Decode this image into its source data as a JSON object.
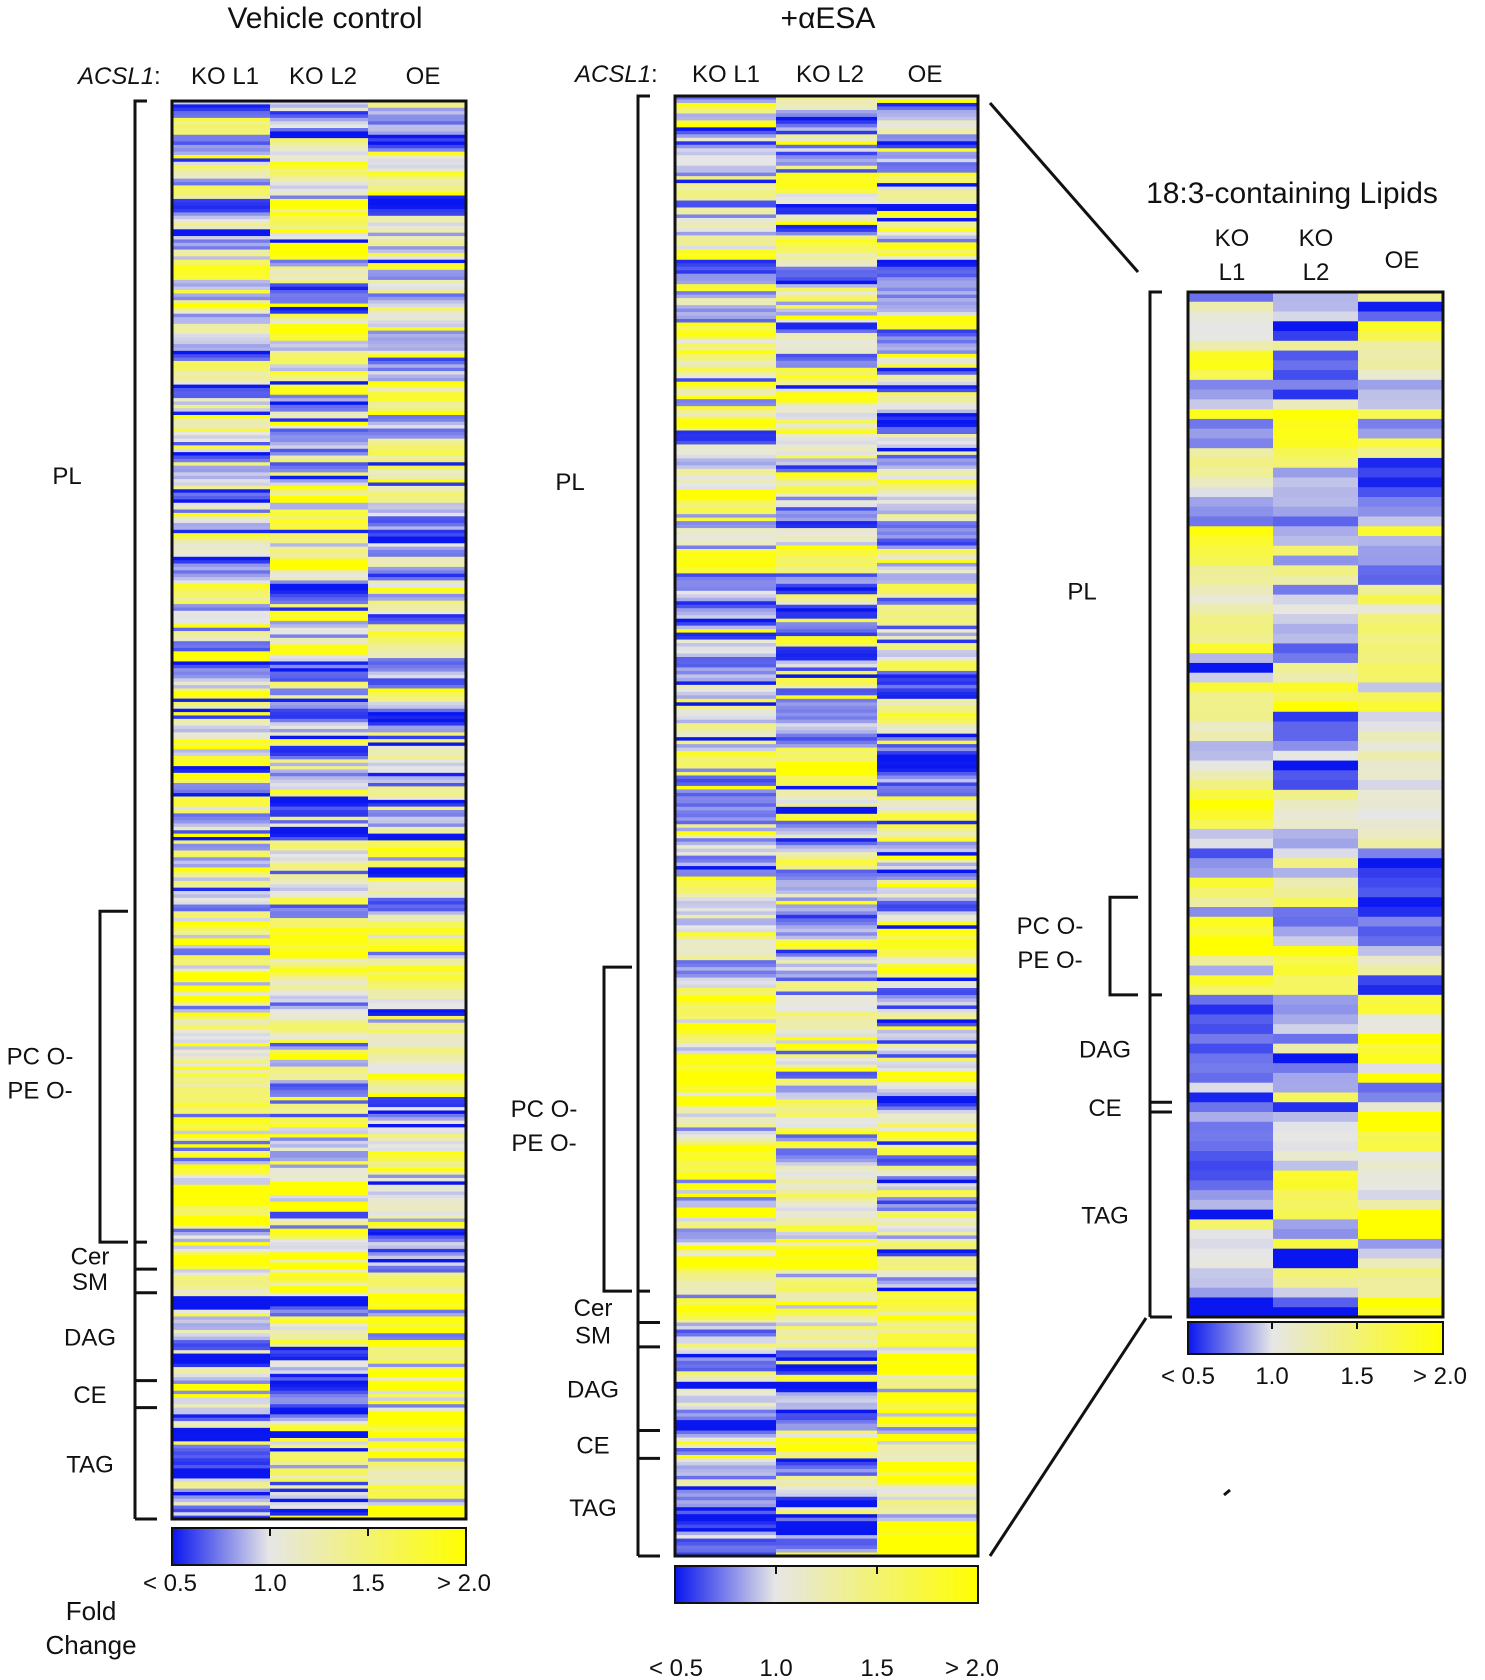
{
  "chart_data": [
    {
      "type": "heatmap",
      "title": "Vehicle control",
      "genotype_label": "ACSL1",
      "columns": [
        "KO L1",
        "KO L2",
        "OE"
      ],
      "row_groups": [
        {
          "name": "PL",
          "rows": 240
        },
        {
          "name": "PC O-\nPE O-",
          "rows": 98
        },
        {
          "name": "Cer",
          "rows": 8
        },
        {
          "name": "SM",
          "rows": 7
        },
        {
          "name": "DAG",
          "rows": 26
        },
        {
          "name": "CE",
          "rows": 8
        },
        {
          "name": "TAG",
          "rows": 33
        }
      ],
      "colorbar": {
        "title": "Fold\nChange",
        "ticks": [
          "< 0.5",
          "1.0",
          "1.5",
          "> 2.0"
        ],
        "range": [
          0.5,
          2.0
        ]
      },
      "seed": 11
    },
    {
      "type": "heatmap",
      "title": "+αESA",
      "genotype_label": "ACSL1",
      "columns": [
        "KO L1",
        "KO L2",
        "OE"
      ],
      "row_groups": [
        {
          "name": "PL",
          "rows": 250
        },
        {
          "name": "PC O-\nPE O-",
          "rows": 93
        },
        {
          "name": "Cer",
          "rows": 9
        },
        {
          "name": "SM",
          "rows": 7
        },
        {
          "name": "DAG",
          "rows": 24
        },
        {
          "name": "CE",
          "rows": 8
        },
        {
          "name": "TAG",
          "rows": 28
        }
      ],
      "colorbar": {
        "title": "",
        "ticks": [
          "< 0.5",
          "1.0",
          "1.5",
          "> 2.0"
        ],
        "range": [
          0.5,
          2.0
        ]
      },
      "seed": 29
    },
    {
      "type": "heatmap",
      "title": "18:3-containing Lipids",
      "genotype_label": "",
      "columns": [
        "KO\nL1",
        "KO\nL2",
        "OE"
      ],
      "row_groups": [
        {
          "name": "PL",
          "rows": 62
        },
        {
          "name": "PC O-\nPE O-",
          "rows": 10
        },
        {
          "name": "DAG",
          "rows": 11
        },
        {
          "name": "CE",
          "rows": 1
        },
        {
          "name": "TAG",
          "rows": 21
        }
      ],
      "colorbar": {
        "title": "",
        "ticks": [
          "< 0.5",
          "1.0",
          "1.5",
          "> 2.0"
        ],
        "range": [
          0.5,
          2.0
        ]
      },
      "seed": 47
    }
  ],
  "colors": {
    "low": "#0a16f0",
    "mid": "#e6e6e6",
    "high": "#ffff00",
    "ink": "#111111"
  }
}
